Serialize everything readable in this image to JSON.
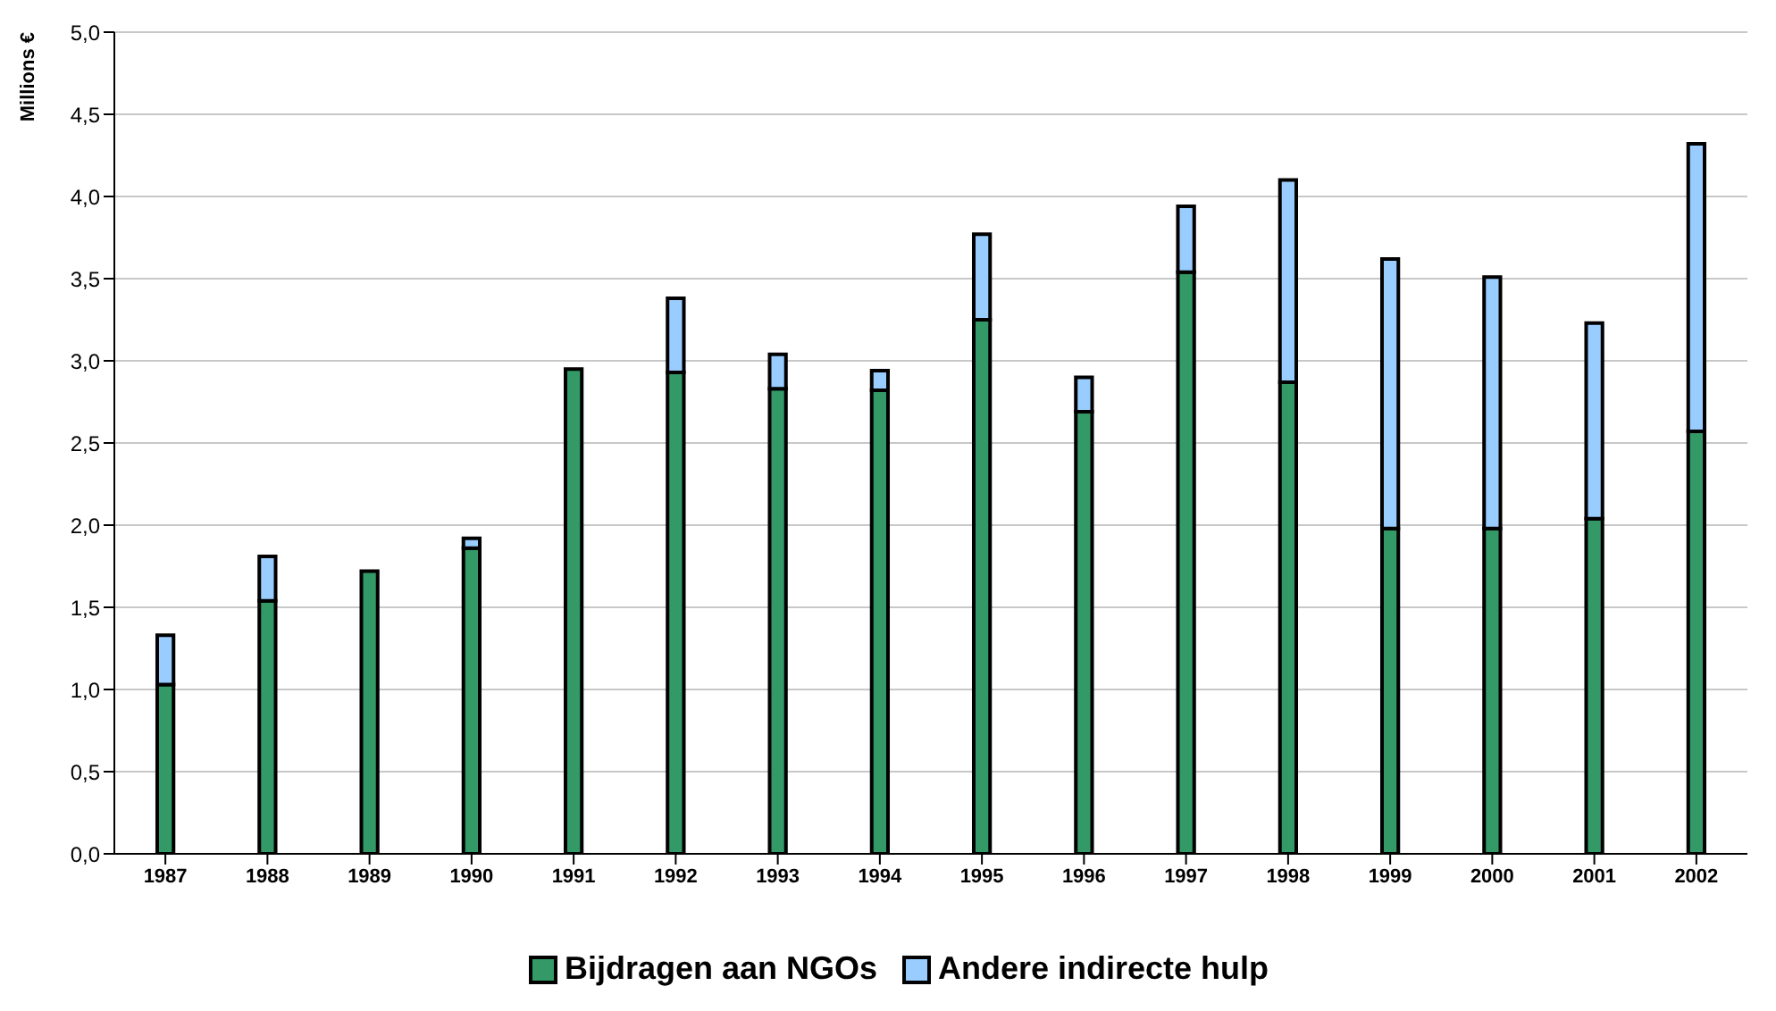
{
  "chart_data": {
    "type": "bar",
    "stacked": true,
    "ylabel": "Millions €",
    "categories": [
      "1987",
      "1988",
      "1989",
      "1990",
      "1991",
      "1992",
      "1993",
      "1994",
      "1995",
      "1996",
      "1997",
      "1998",
      "1999",
      "2000",
      "2001",
      "2002"
    ],
    "series": [
      {
        "name": "Bijdragen aan NGOs",
        "color": "#339966",
        "values": [
          1.03,
          1.54,
          1.72,
          1.86,
          2.95,
          2.93,
          2.83,
          2.82,
          3.25,
          2.69,
          3.54,
          2.87,
          1.98,
          1.98,
          2.04,
          2.57
        ]
      },
      {
        "name": "Andere indirecte hulp",
        "color": "#99ccff",
        "values": [
          0.3,
          0.27,
          0,
          0.06,
          0,
          0.45,
          0.21,
          0.12,
          0.52,
          0.21,
          0.4,
          1.23,
          1.64,
          1.53,
          1.19,
          1.75
        ]
      }
    ],
    "ylim": [
      0,
      5
    ],
    "yticks": [
      {
        "value": 0,
        "label": "0,0"
      },
      {
        "value": 0.5,
        "label": "0,5"
      },
      {
        "value": 1,
        "label": "1,0"
      },
      {
        "value": 1.5,
        "label": "1,5"
      },
      {
        "value": 2,
        "label": "2,0"
      },
      {
        "value": 2.5,
        "label": "2,5"
      },
      {
        "value": 3,
        "label": "3,0"
      },
      {
        "value": 3.5,
        "label": "3,5"
      },
      {
        "value": 4,
        "label": "4,0"
      },
      {
        "value": 4.5,
        "label": "4,5"
      },
      {
        "value": 5,
        "label": "5,0"
      }
    ],
    "grid": "y",
    "legend": "bottom"
  }
}
